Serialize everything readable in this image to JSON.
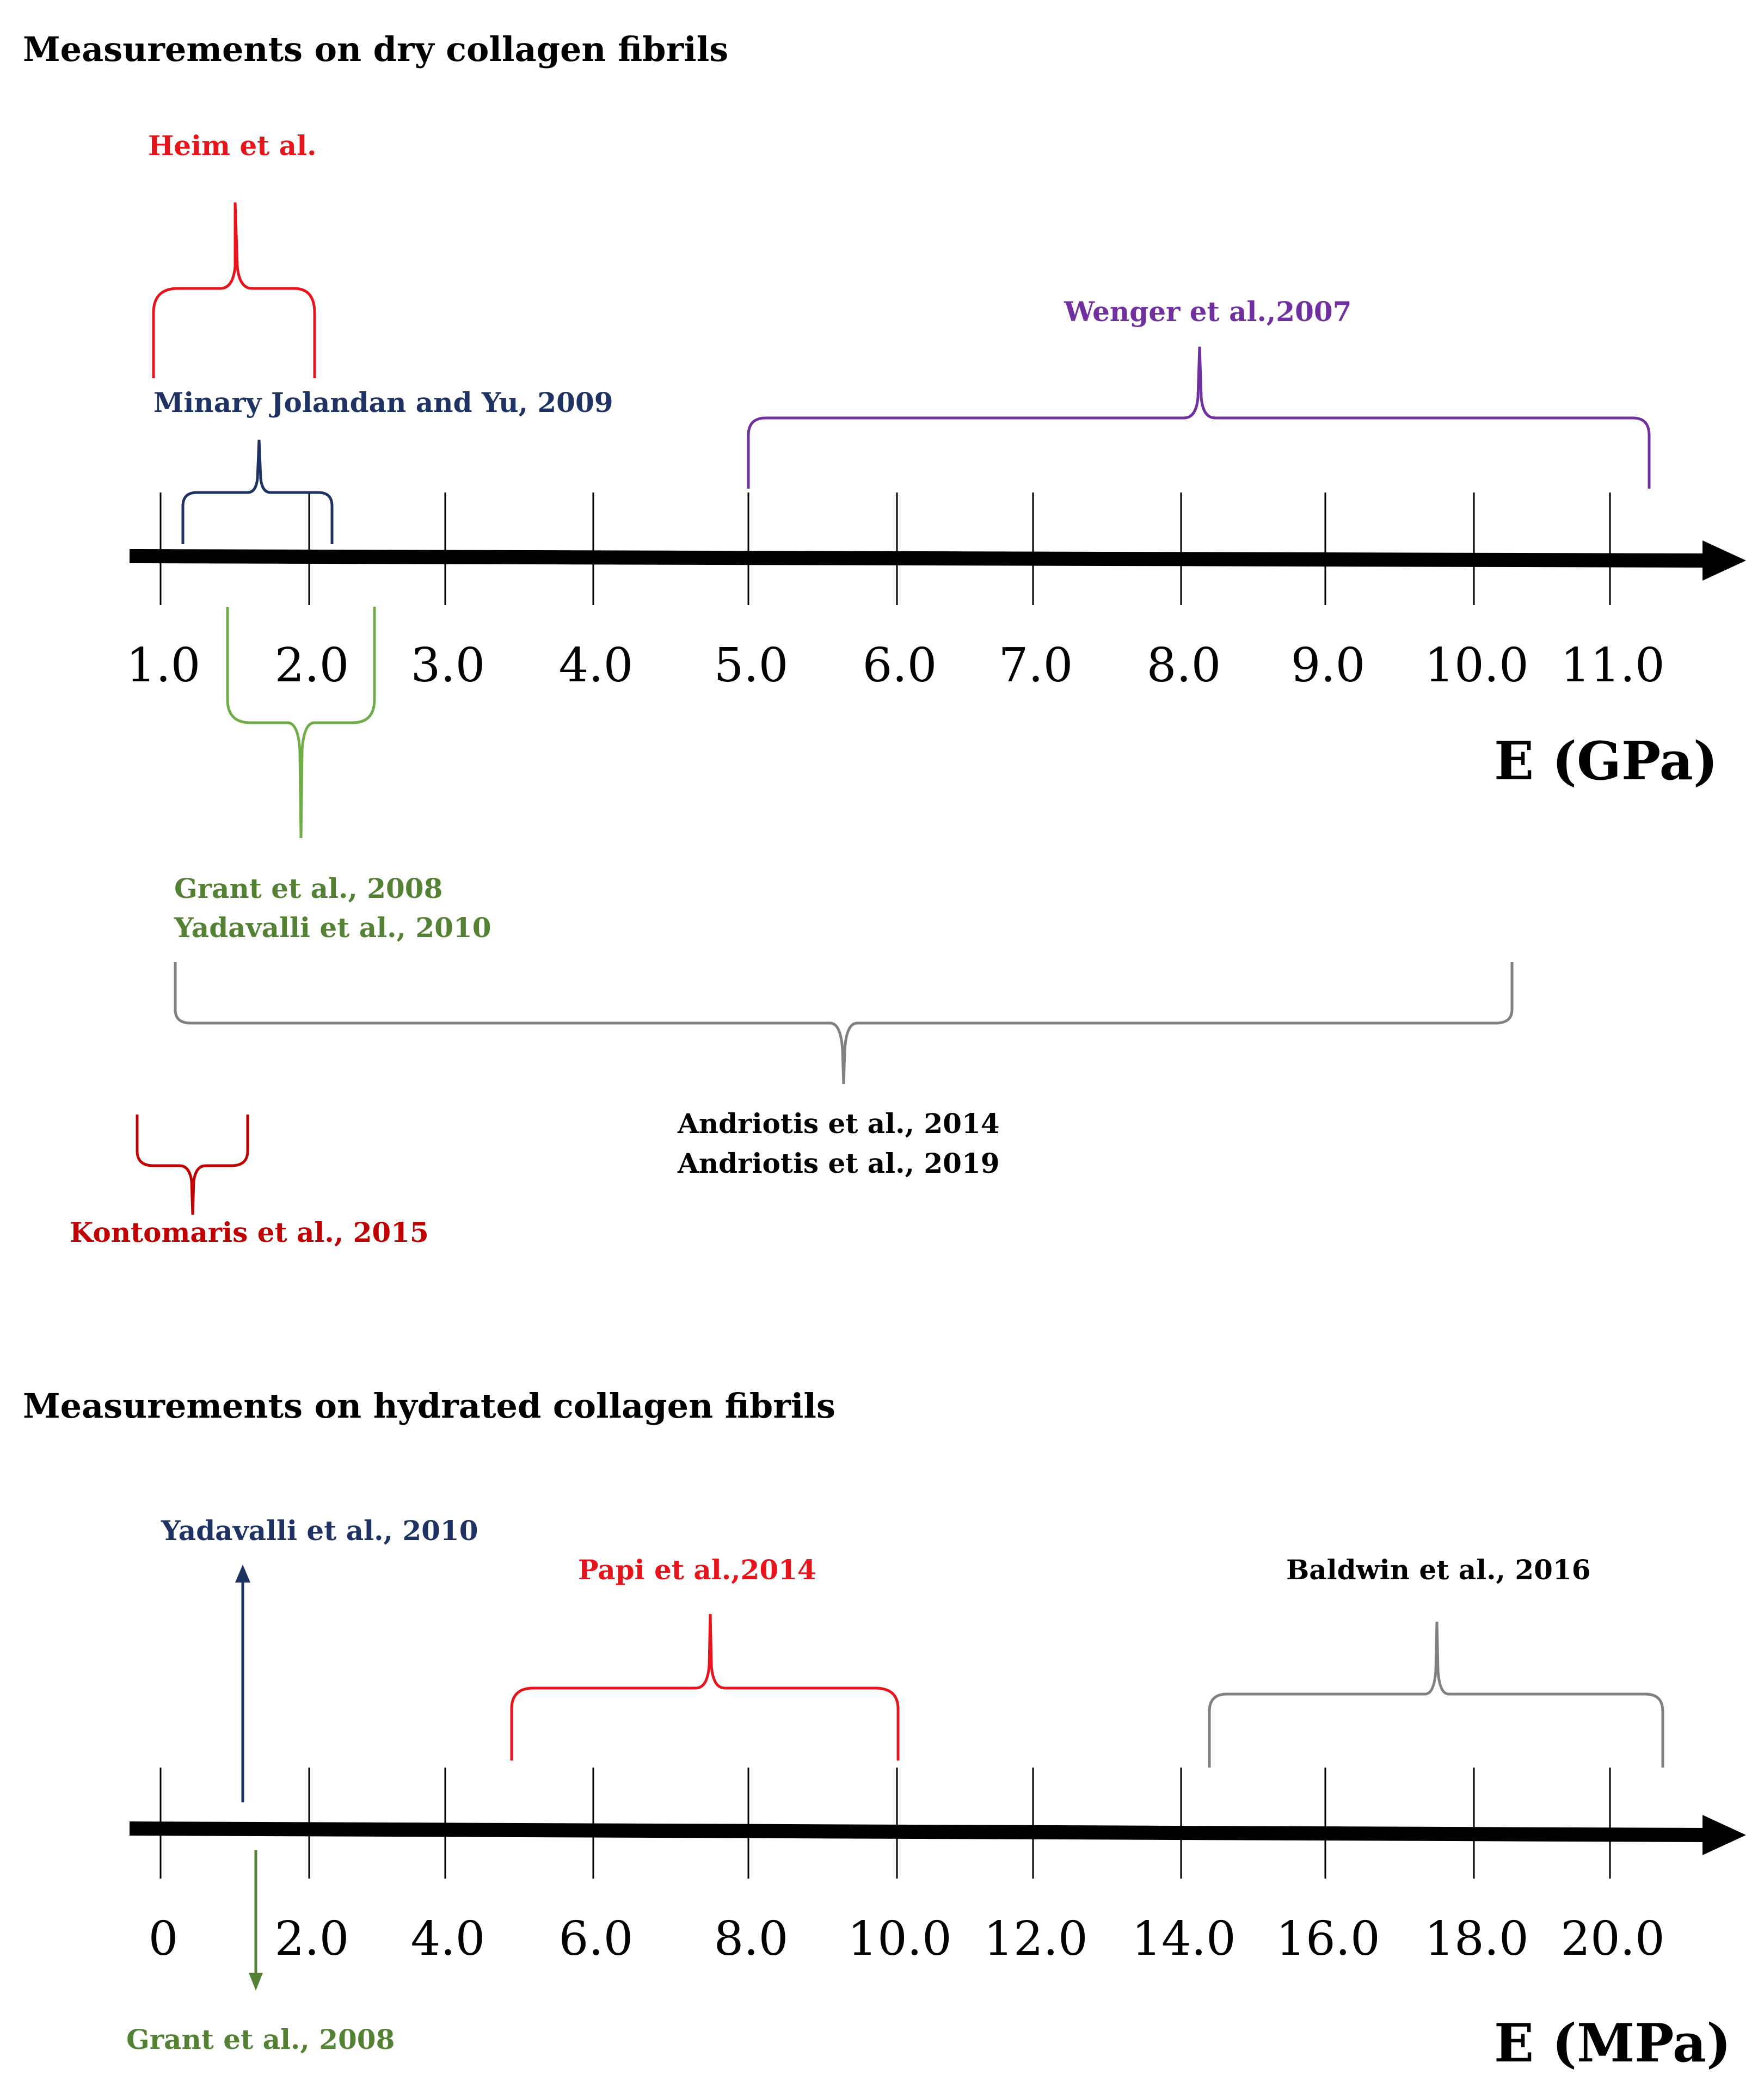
{
  "dry": {
    "heading": "Measurements on dry collagen fibrils",
    "unit_label": "E (GPa)",
    "unit": "GPa",
    "axis_ticks": [
      "1.0",
      "2.0",
      "3.0",
      "4.0",
      "5.0",
      "6.0",
      "7.0",
      "8.0",
      "9.0",
      "10.0",
      "11.0"
    ],
    "references": [
      {
        "id": "heim",
        "lines": [
          "Heim et al."
        ],
        "color": "#e8141b",
        "range": [
          1.0,
          2.1
        ]
      },
      {
        "id": "minary",
        "lines": [
          "Minary Jolandan and Yu, 2009"
        ],
        "color": "#1f3264",
        "range": [
          1.15,
          2.15
        ]
      },
      {
        "id": "wenger",
        "lines": [
          "Wenger et al.,2007"
        ],
        "color": "#7030a0",
        "range": [
          5.0,
          11.3
        ]
      },
      {
        "id": "grant-yadavalli",
        "lines": [
          "Grant et al., 2008",
          "Yadavalli et al., 2010"
        ],
        "color": "#548235",
        "range": [
          1.45,
          2.45
        ]
      },
      {
        "id": "andriotis",
        "lines": [
          "Andriotis et al., 2014",
          "Andriotis et al., 2019"
        ],
        "color": "#808080",
        "label_color": "#000000",
        "range": [
          1.1,
          10.3
        ]
      },
      {
        "id": "kontomaris",
        "lines": [
          "Kontomaris et al., 2015"
        ],
        "color": "#c00000",
        "range": [
          0.85,
          1.6
        ]
      }
    ]
  },
  "hydrated": {
    "heading": "Measurements on hydrated collagen fibrils",
    "unit_label": "E (MPa)",
    "unit": "MPa",
    "axis_ticks": [
      "0",
      "2.0",
      "4.0",
      "6.0",
      "8.0",
      "10.0",
      "12.0",
      "14.0",
      "16.0",
      "18.0",
      "20.0"
    ],
    "references": [
      {
        "id": "yadavalli",
        "lines": [
          "Yadavalli et al., 2010"
        ],
        "color": "#1f3264",
        "value": 1.15,
        "marker": "arrow-up"
      },
      {
        "id": "grant",
        "lines": [
          "Grant et al., 2008"
        ],
        "color": "#548235",
        "value": 1.3,
        "marker": "arrow-down"
      },
      {
        "id": "papi",
        "lines": [
          "Papi et al.,2014"
        ],
        "color": "#e8141b",
        "range": [
          4.9,
          10.0
        ]
      },
      {
        "id": "baldwin",
        "lines": [
          "Baldwin et al., 2016"
        ],
        "color": "#808080",
        "label_color": "#000000",
        "range": [
          14.4,
          20.7
        ]
      }
    ]
  }
}
